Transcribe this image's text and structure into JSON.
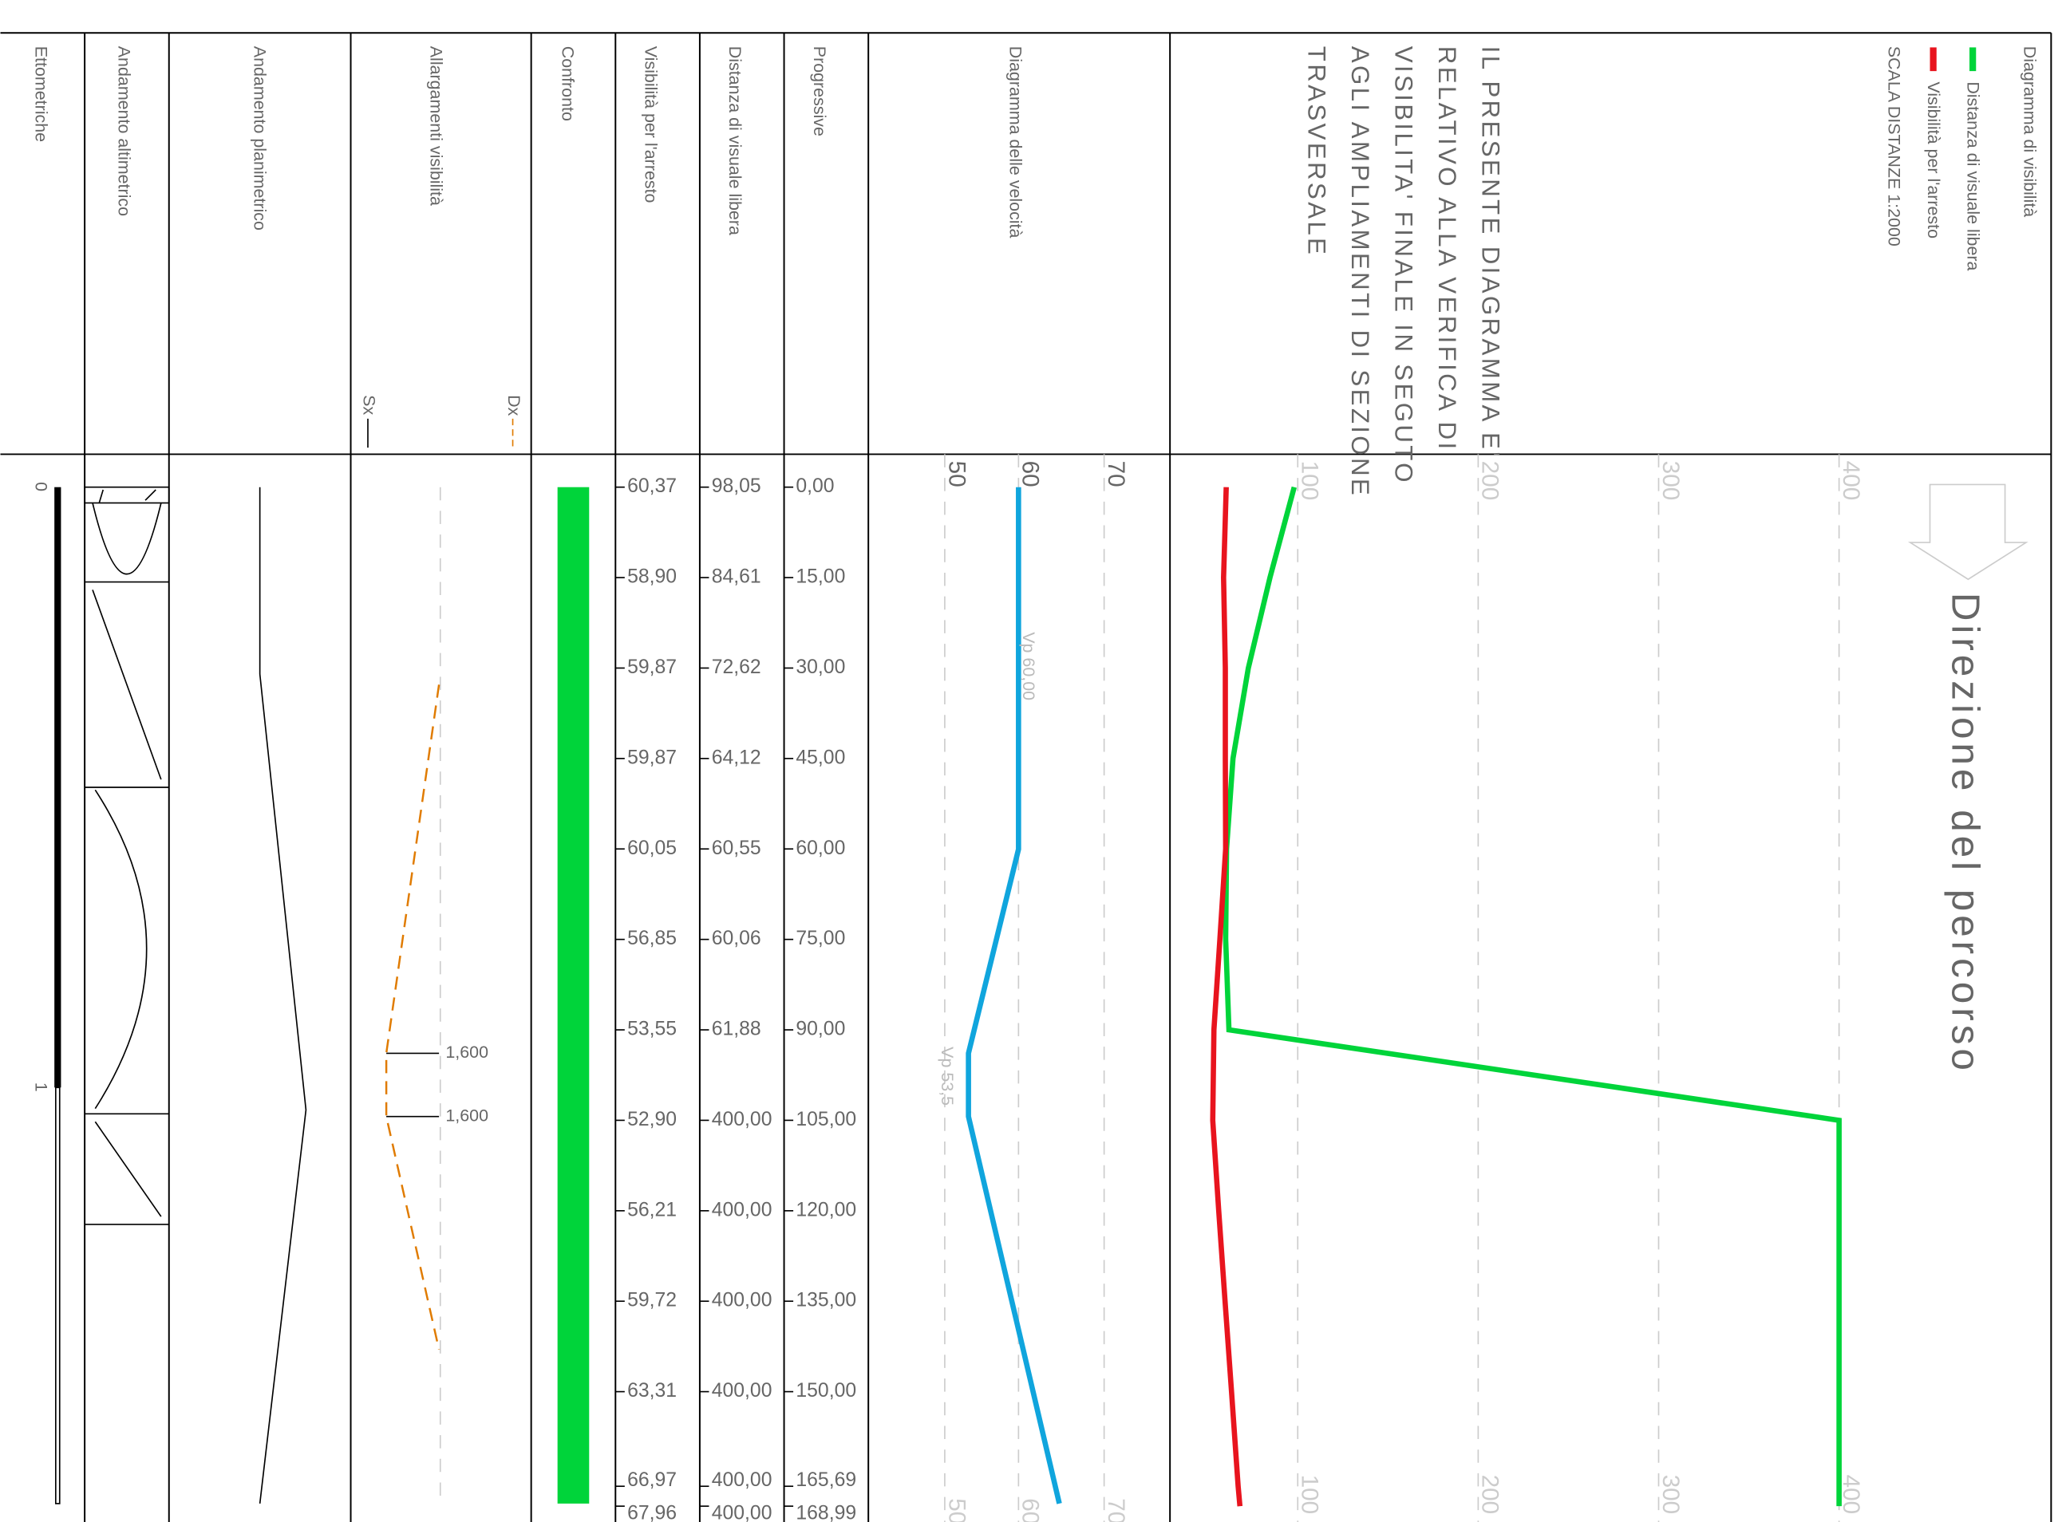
{
  "headers": [
    "Ettometriche",
    "Andamento altimetrico",
    "Andamento planimetrico",
    "Allargamenti visibilità",
    "Confronto",
    "Visibilità per l'arresto",
    "Distanza di visuale libera",
    "Progressive",
    "Diagramma delle velocità"
  ],
  "widening_keys": [
    "Sx",
    "Dx"
  ],
  "note": [
    "IL PRESENTE DIAGRAMMA E'",
    "RELATIVO ALLA VERIFICA DI",
    "VISIBILITA' FINALE IN SEGUTO",
    "AGLI AMPLIAMENTI DI SEZIONE",
    "TRASVERSALE"
  ],
  "legend": {
    "title": "Diagramma di visibilità",
    "items": [
      {
        "name": "Distanza di visuale libera",
        "color": "#00d43a"
      },
      {
        "name": "Visibilità per l'arresto",
        "color": "#e8141e"
      }
    ],
    "scale": "SCALA DISTANZE 1:2000"
  },
  "direction": "Direzione del percorso",
  "ettometriche": [
    "0",
    "1"
  ],
  "velocity_scale": [
    "50",
    "60",
    "70"
  ],
  "visibility_scale": [
    {
      "value": 100,
      "label": "100"
    },
    {
      "value": 200,
      "label": "200"
    },
    {
      "value": 300,
      "label": "300"
    },
    {
      "value": 400,
      "label": "400"
    }
  ],
  "velocity_labels": [
    "Vp 60,00",
    "Vp 53,5"
  ],
  "widening_labels": [
    "1,600",
    "1,600"
  ],
  "rows": {
    "progressive": [
      {
        "value": 0,
        "label": "0,00"
      },
      {
        "value": 15,
        "label": "15,00"
      },
      {
        "value": 30,
        "label": "30,00"
      },
      {
        "value": 45,
        "label": "45,00"
      },
      {
        "value": 60,
        "label": "60,00"
      },
      {
        "value": 75,
        "label": "75,00"
      },
      {
        "value": 90,
        "label": "90,00"
      },
      {
        "value": 105,
        "label": "105,00"
      },
      {
        "value": 120,
        "label": "120,00"
      },
      {
        "value": 135,
        "label": "135,00"
      },
      {
        "value": 150,
        "label": "150,00"
      },
      {
        "value": 165.69,
        "label": "165,69"
      },
      {
        "value": 168.99,
        "label": "168,99"
      }
    ],
    "visibility_stop": [
      {
        "value": 60.37,
        "label": "60,37"
      },
      {
        "value": 58.9,
        "label": "58,90"
      },
      {
        "value": 59.87,
        "label": "59,87"
      },
      {
        "value": 59.87,
        "label": "59,87"
      },
      {
        "value": 60.05,
        "label": "60,05"
      },
      {
        "value": 56.85,
        "label": "56,85"
      },
      {
        "value": 53.55,
        "label": "53,55"
      },
      {
        "value": 52.9,
        "label": "52,90"
      },
      {
        "value": 56.21,
        "label": "56,21"
      },
      {
        "value": 59.72,
        "label": "59,72"
      },
      {
        "value": 63.31,
        "label": "63,31"
      },
      {
        "value": 66.97,
        "label": "66,97"
      },
      {
        "value": 67.96,
        "label": "67,96"
      }
    ],
    "free_sight": [
      {
        "value": 98.05,
        "label": "98,05"
      },
      {
        "value": 84.61,
        "label": "84,61"
      },
      {
        "value": 72.62,
        "label": "72,62"
      },
      {
        "value": 64.12,
        "label": "64,12"
      },
      {
        "value": 60.55,
        "label": "60,55"
      },
      {
        "value": 60.06,
        "label": "60,06"
      },
      {
        "value": 61.88,
        "label": "61,88"
      },
      {
        "value": 400,
        "label": "400,00"
      },
      {
        "value": 400,
        "label": "400,00"
      },
      {
        "value": 400,
        "label": "400,00"
      },
      {
        "value": 400,
        "label": "400,00"
      },
      {
        "value": 400,
        "label": "400,00"
      },
      {
        "value": 400,
        "label": "400,00"
      }
    ]
  }
}
